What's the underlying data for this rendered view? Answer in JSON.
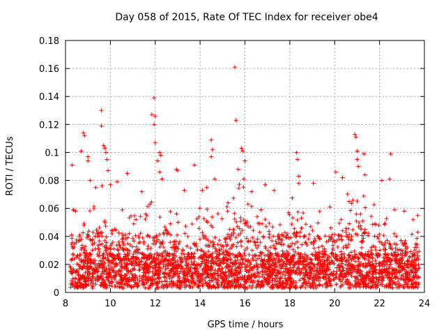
{
  "chart_data": {
    "type": "scatter",
    "title": "Day 058 of 2015, Rate Of TEC Index for receiver obe4",
    "xlabel": "GPS time / hours",
    "ylabel": "ROTI / TECUs",
    "xlim": [
      8,
      24
    ],
    "ylim": [
      0,
      0.18
    ],
    "x_ticks": [
      "8",
      "10",
      "12",
      "14",
      "16",
      "18",
      "20",
      "22",
      "24"
    ],
    "y_ticks": [
      "0",
      "0.02",
      "0.04",
      "0.06",
      "0.08",
      "0.1",
      "0.12",
      "0.14",
      "0.16",
      "0.18"
    ],
    "grid": true,
    "marker": "+",
    "color": "#ff0000",
    "data_span": [
      8.2,
      23.8
    ],
    "points": [
      [
        8.3,
        0.091
      ],
      [
        8.35,
        0.059
      ],
      [
        8.45,
        0.058
      ],
      [
        8.7,
        0.101
      ],
      [
        8.8,
        0.114
      ],
      [
        8.85,
        0.112
      ],
      [
        9.0,
        0.094
      ],
      [
        9.0,
        0.097
      ],
      [
        9.1,
        0.08
      ],
      [
        9.35,
        0.075
      ],
      [
        9.6,
        0.13
      ],
      [
        9.6,
        0.119
      ],
      [
        9.7,
        0.105
      ],
      [
        9.75,
        0.103
      ],
      [
        9.8,
        0.1
      ],
      [
        9.85,
        0.095
      ],
      [
        9.9,
        0.087
      ],
      [
        10.0,
        0.077
      ],
      [
        10.3,
        0.079
      ],
      [
        10.75,
        0.085
      ],
      [
        11.4,
        0.072
      ],
      [
        11.85,
        0.127
      ],
      [
        11.95,
        0.139
      ],
      [
        12.0,
        0.126
      ],
      [
        11.95,
        0.12
      ],
      [
        12.0,
        0.107
      ],
      [
        12.1,
        0.094
      ],
      [
        12.2,
        0.1
      ],
      [
        12.25,
        0.098
      ],
      [
        12.2,
        0.086
      ],
      [
        12.3,
        0.081
      ],
      [
        12.95,
        0.088
      ],
      [
        13.0,
        0.087
      ],
      [
        13.3,
        0.073
      ],
      [
        13.75,
        0.091
      ],
      [
        14.1,
        0.073
      ],
      [
        14.3,
        0.075
      ],
      [
        14.5,
        0.109
      ],
      [
        14.55,
        0.102
      ],
      [
        14.5,
        0.097
      ],
      [
        14.65,
        0.081
      ],
      [
        15.55,
        0.161
      ],
      [
        15.6,
        0.123
      ],
      [
        15.7,
        0.088
      ],
      [
        15.85,
        0.103
      ],
      [
        15.9,
        0.101
      ],
      [
        16.0,
        0.094
      ],
      [
        15.95,
        0.081
      ],
      [
        16.3,
        0.072
      ],
      [
        16.9,
        0.077
      ],
      [
        17.3,
        0.073
      ],
      [
        18.3,
        0.1
      ],
      [
        18.35,
        0.095
      ],
      [
        18.4,
        0.083
      ],
      [
        18.4,
        0.078
      ],
      [
        19.05,
        0.078
      ],
      [
        20.05,
        0.086
      ],
      [
        20.35,
        0.082
      ],
      [
        20.9,
        0.113
      ],
      [
        20.95,
        0.111
      ],
      [
        21.0,
        0.101
      ],
      [
        21.0,
        0.095
      ],
      [
        21.05,
        0.09
      ],
      [
        21.3,
        0.099
      ],
      [
        21.35,
        0.084
      ],
      [
        22.1,
        0.08
      ],
      [
        22.5,
        0.099
      ],
      [
        22.45,
        0.081
      ],
      [
        23.1,
        0.058
      ],
      [
        23.5,
        0.052
      ],
      [
        23.7,
        0.055
      ]
    ]
  }
}
